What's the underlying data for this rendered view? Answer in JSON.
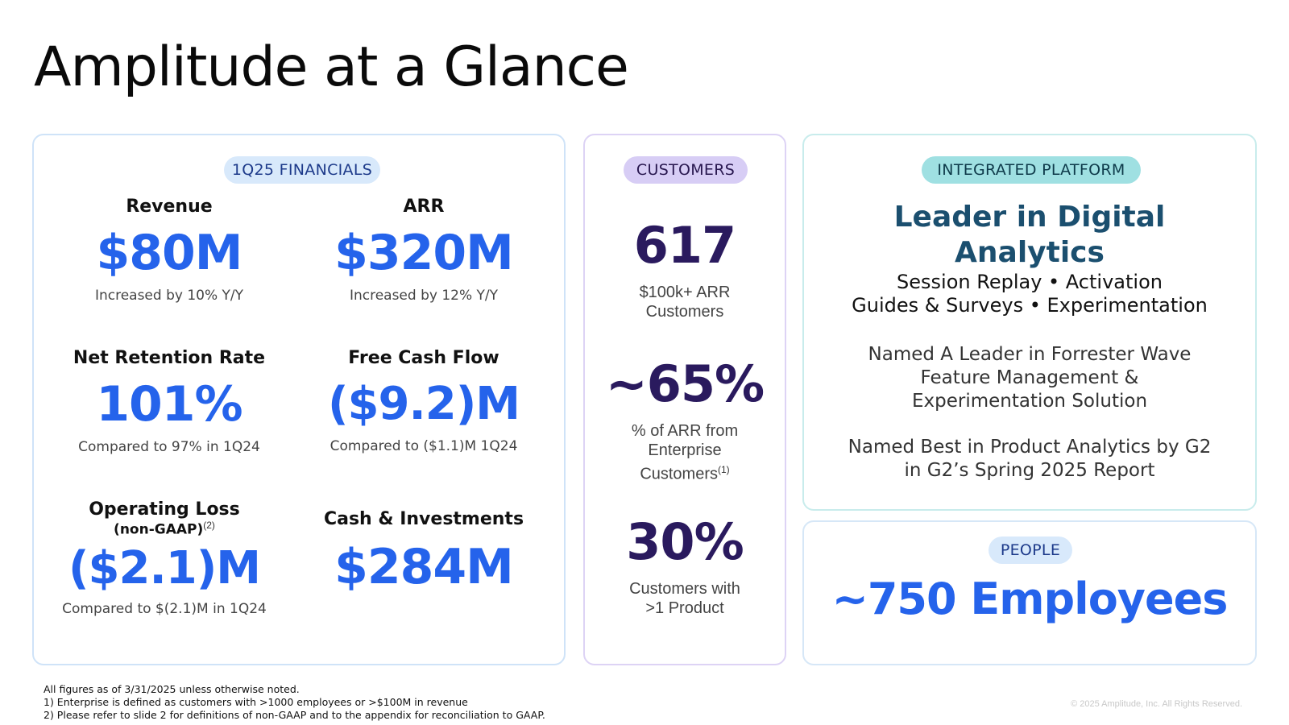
{
  "title": "Amplitude at a Glance",
  "financials": {
    "pill": "1Q25 FINANCIALS",
    "revenue": {
      "label": "Revenue",
      "value": "$80M",
      "note": "Increased by 10% Y/Y"
    },
    "arr": {
      "label": "ARR",
      "value": "$320M",
      "note": "Increased by 12% Y/Y"
    },
    "nrr": {
      "label": "Net Retention Rate",
      "value": "101%",
      "note": "Compared to 97% in 1Q24"
    },
    "fcf": {
      "label": "Free Cash Flow",
      "value": "($9.2)M",
      "note": "Compared to ($1.1)M 1Q24"
    },
    "op_loss": {
      "label": "Operating Loss",
      "sublabel": "(non-GAAP)",
      "sup": "(2)",
      "value": "($2.1)M",
      "note": "Compared to $(2.1)M in 1Q24"
    },
    "cash": {
      "label": "Cash & Investments",
      "value": "$284M"
    }
  },
  "customers": {
    "pill": "CUSTOMERS",
    "m1": {
      "value": "617",
      "line1": "$100k+ ARR",
      "line2": "Customers"
    },
    "m2": {
      "value": "~65%",
      "line1": "% of ARR from",
      "line2": "Enterprise",
      "line3": "Customers",
      "sup": "(1)"
    },
    "m3": {
      "value": "30%",
      "line1": "Customers with",
      "line2": ">1 Product"
    }
  },
  "platform": {
    "pill": "INTEGRATED PLATFORM",
    "heading1": "Leader in Digital",
    "heading2": "Analytics",
    "features1": "Session Replay • Activation",
    "features2": "Guides & Surveys • Experimentation",
    "forrester1": "Named A Leader in Forrester Wave",
    "forrester2": "Feature Management &",
    "forrester3": "Experimentation Solution",
    "g2_1": "Named Best in Product Analytics by G2",
    "g2_2": "in G2’s Spring 2025 Report"
  },
  "people": {
    "pill": "PEOPLE",
    "value": "~750 Employees"
  },
  "footnotes": {
    "line1": "All figures as of 3/31/2025 unless otherwise noted.",
    "line2": "1)  Enterprise is defined as customers with >1000 employees or >$100M in revenue",
    "line3": "2) Please refer to slide 2 for definitions of non-GAAP and to the appendix for reconciliation to GAAP."
  },
  "copyright": "© 2025 Amplitude, Inc.  All Rights Reserved.",
  "colors": {
    "accent_blue": "#2563eb",
    "dark_purple": "#2a1a5e",
    "teal_heading": "#1b4f6f"
  }
}
